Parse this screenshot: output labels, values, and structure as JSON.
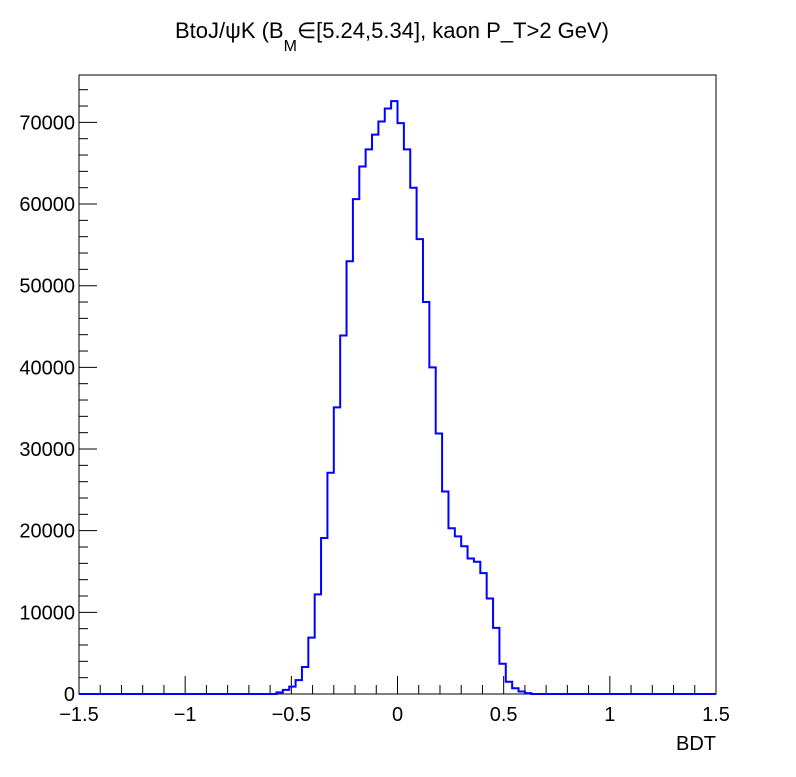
{
  "colors": {
    "histogram_line": "#0000ff",
    "axis": "#000000",
    "background": "#ffffff"
  },
  "chart_data": {
    "type": "histogram",
    "title": {
      "prefix": "BtoJ/",
      "psi": "ψ",
      "after_psi": "K (B",
      "subscript": "M",
      "suffix": "∈[5.24,5.34], kaon P_T>2 GeV)"
    },
    "xlabel": "BDT",
    "ylabel": "",
    "xlim": [
      -1.5,
      1.5
    ],
    "ylim": [
      0,
      75800
    ],
    "grid": false,
    "x_tick_labels": [
      "−1.5",
      "−1",
      "−0.5",
      "0",
      "0.5",
      "1",
      "1.5"
    ],
    "x_tick_values": [
      -1.5,
      -1,
      -0.5,
      0,
      0.5,
      1,
      1.5
    ],
    "y_tick_labels": [
      "0",
      "10000",
      "20000",
      "30000",
      "40000",
      "50000",
      "60000",
      "70000"
    ],
    "y_tick_values": [
      0,
      10000,
      20000,
      30000,
      40000,
      50000,
      60000,
      70000
    ],
    "bin_width": 0.03,
    "bin_edges_from": -0.57,
    "counts": [
      200,
      500,
      900,
      1700,
      3300,
      6900,
      12200,
      19100,
      27100,
      35100,
      43900,
      53000,
      60600,
      64600,
      66700,
      68500,
      70100,
      71700,
      72600,
      69900,
      66700,
      62000,
      55700,
      48000,
      40000,
      31900,
      24800,
      20300,
      19300,
      18100,
      16600,
      16200,
      14800,
      11700,
      8100,
      3700,
      1500,
      700,
      300,
      100
    ]
  }
}
